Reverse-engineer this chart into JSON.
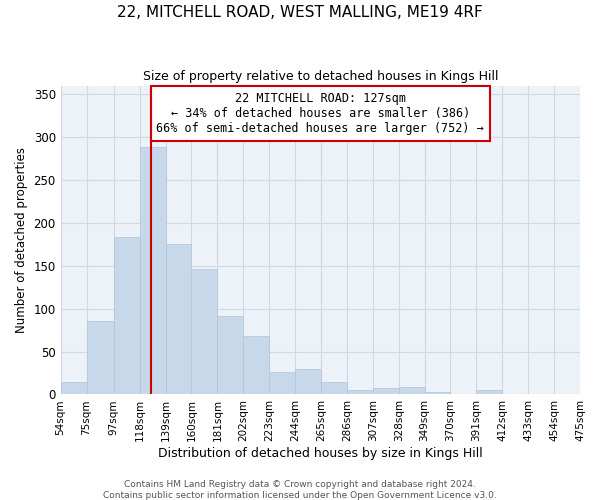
{
  "title": "22, MITCHELL ROAD, WEST MALLING, ME19 4RF",
  "subtitle": "Size of property relative to detached houses in Kings Hill",
  "xlabel": "Distribution of detached houses by size in Kings Hill",
  "ylabel": "Number of detached properties",
  "bar_color": "#c8d8eb",
  "bar_edge_color": "#b0c4d8",
  "grid_color": "#d0d8e4",
  "annotation_box_edge_color": "#cc0000",
  "vline_color": "#cc0000",
  "vline_x": 127,
  "annotation_text": "22 MITCHELL ROAD: 127sqm\n← 34% of detached houses are smaller (386)\n66% of semi-detached houses are larger (752) →",
  "footer_text": "Contains HM Land Registry data © Crown copyright and database right 2024.\nContains public sector information licensed under the Open Government Licence v3.0.",
  "bin_edges": [
    54,
    75,
    97,
    118,
    139,
    160,
    181,
    202,
    223,
    244,
    265,
    286,
    307,
    328,
    349,
    370,
    391,
    412,
    433,
    454,
    475
  ],
  "bin_labels": [
    "54sqm",
    "75sqm",
    "97sqm",
    "118sqm",
    "139sqm",
    "160sqm",
    "181sqm",
    "202sqm",
    "223sqm",
    "244sqm",
    "265sqm",
    "286sqm",
    "307sqm",
    "328sqm",
    "349sqm",
    "370sqm",
    "391sqm",
    "412sqm",
    "433sqm",
    "454sqm",
    "475sqm"
  ],
  "counts": [
    14,
    86,
    184,
    288,
    175,
    146,
    92,
    68,
    26,
    30,
    14,
    5,
    7,
    9,
    3,
    0,
    5,
    0,
    0,
    0
  ],
  "ylim": [
    0,
    360
  ],
  "yticks": [
    0,
    50,
    100,
    150,
    200,
    250,
    300,
    350
  ],
  "background_color": "#edf1f8",
  "title_fontsize": 11,
  "subtitle_fontsize": 9,
  "footer_fontsize": 6.5,
  "ylabel_fontsize": 8.5,
  "xlabel_fontsize": 9
}
